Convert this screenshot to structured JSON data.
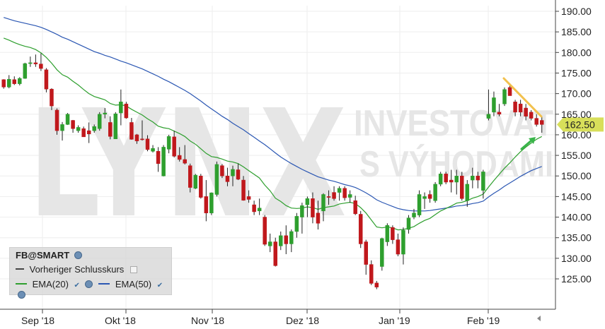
{
  "chart_data": {
    "type": "candlestick",
    "symbol": "FB@SMART",
    "watermark": {
      "logo": "LYNX",
      "line1": "INVESTOVAT",
      "line2": "S VÝHODAMI"
    },
    "ylim": [
      119,
      193
    ],
    "y_ticks": [
      "190.00",
      "185.00",
      "180.00",
      "175.00",
      "170.00",
      "165.00",
      "160.00",
      "155.00",
      "150.00",
      "145.00",
      "140.00",
      "135.00",
      "130.00",
      "125.00"
    ],
    "x_labels": [
      "Sep '18",
      "Okt '18",
      "Nov '18",
      "Dez '18",
      "Jan '19",
      "Feb '19"
    ],
    "last_price": "162.50",
    "legend": {
      "title": "FB@SMART",
      "prev_close": "Vorheriger Schlusskurs",
      "ema20": "EMA(20)",
      "ema50": "EMA(50)"
    },
    "colors": {
      "up": "#2e9f2e",
      "down": "#c0181c",
      "ema20": "#2e9f2e",
      "ema50": "#2b57b3",
      "price_tag": "#d8df5a",
      "trend": "#f2c14e",
      "arrow": "#39b54a"
    },
    "candles": [
      [
        173.4,
        173.5,
        171.2,
        171.6
      ],
      [
        171.6,
        174.5,
        171.3,
        173.5
      ],
      [
        173.4,
        174.2,
        172.1,
        172.4
      ],
      [
        172.4,
        174.0,
        172.0,
        173.7
      ],
      [
        173.7,
        177.5,
        173.6,
        177.3
      ],
      [
        177.3,
        179.0,
        176.5,
        177.5
      ],
      [
        177.5,
        179.5,
        176.5,
        177.2
      ],
      [
        177.2,
        179.8,
        175.5,
        176.1
      ],
      [
        175.8,
        176.2,
        170.3,
        171.1
      ],
      [
        171.1,
        171.3,
        166.0,
        167.0
      ],
      [
        166.0,
        166.4,
        160.0,
        161.0
      ],
      [
        161.0,
        163.1,
        158.6,
        162.5
      ],
      [
        162.5,
        165.3,
        162.4,
        165.0
      ],
      [
        163.5,
        163.6,
        160.5,
        161.5
      ],
      [
        161.0,
        162.3,
        160.5,
        161.8
      ],
      [
        161.5,
        162.0,
        159.5,
        159.5
      ],
      [
        161.0,
        163.0,
        158.0,
        160.2
      ],
      [
        161.0,
        162.5,
        160.5,
        162.0
      ],
      [
        161.5,
        165.5,
        161.0,
        165.0
      ],
      [
        165.0,
        166.5,
        164.0,
        165.3
      ],
      [
        163.0,
        164.5,
        158.9,
        159.6
      ],
      [
        159.0,
        165.5,
        159.0,
        165.1
      ],
      [
        165.3,
        171.0,
        162.3,
        168.0
      ],
      [
        167.5,
        168.0,
        163.9,
        164.1
      ],
      [
        163.0,
        164.1,
        158.8,
        158.9
      ],
      [
        160.0,
        160.2,
        157.8,
        158.5
      ],
      [
        159.0,
        163.5,
        158.6,
        158.8
      ],
      [
        159.0,
        159.9,
        156.0,
        156.4
      ],
      [
        156.0,
        157.5,
        155.7,
        156.7
      ],
      [
        156.0,
        157.0,
        151.0,
        153.0
      ],
      [
        150.0,
        157.5,
        149.9,
        157.0
      ],
      [
        156.5,
        160.0,
        155.5,
        159.6
      ],
      [
        159.5,
        161.0,
        154.5,
        154.8
      ],
      [
        155.0,
        157.0,
        153.5,
        154.0
      ],
      [
        154.0,
        157.5,
        152.8,
        153.1
      ],
      [
        152.5,
        153.0,
        146.0,
        147.2
      ],
      [
        147.0,
        150.5,
        146.8,
        150.2
      ],
      [
        150.0,
        150.5,
        144.5,
        144.8
      ],
      [
        145.0,
        149.0,
        139.0,
        141.0
      ],
      [
        141.0,
        146.0,
        140.5,
        145.9
      ],
      [
        145.5,
        153.5,
        145.0,
        152.8
      ],
      [
        152.5,
        152.9,
        149.5,
        150.0
      ],
      [
        150.0,
        152.0,
        147.5,
        148.6
      ],
      [
        150.0,
        152.5,
        147.5,
        151.6
      ],
      [
        151.5,
        153.0,
        149.0,
        149.2
      ],
      [
        149.0,
        150.0,
        144.0,
        144.1
      ],
      [
        145.0,
        146.5,
        143.5,
        144.3
      ],
      [
        143.0,
        144.0,
        140.5,
        141.3
      ],
      [
        141.5,
        144.5,
        140.5,
        142.2
      ],
      [
        140.0,
        140.5,
        133.0,
        133.4
      ],
      [
        133.0,
        136.0,
        131.5,
        134.0
      ],
      [
        134.0,
        135.0,
        128.0,
        128.2
      ],
      [
        133.0,
        136.5,
        132.0,
        135.5
      ],
      [
        135.5,
        138.0,
        131.0,
        133.5
      ],
      [
        133.5,
        137.0,
        131.5,
        136.5
      ],
      [
        136.5,
        141.0,
        135.0,
        140.2
      ],
      [
        140.0,
        143.5,
        136.0,
        142.8
      ],
      [
        143.0,
        145.0,
        140.0,
        144.5
      ],
      [
        144.5,
        146.0,
        138.5,
        140.0
      ],
      [
        141.0,
        144.0,
        137.0,
        138.5
      ],
      [
        141.5,
        145.8,
        139.0,
        145.5
      ],
      [
        145.0,
        146.5,
        143.0,
        144.8
      ],
      [
        146.0,
        147.5,
        144.0,
        144.5
      ],
      [
        146.0,
        147.5,
        144.0,
        147.0
      ],
      [
        147.0,
        147.5,
        144.0,
        144.7
      ],
      [
        144.8,
        146.5,
        143.5,
        145.5
      ],
      [
        144.0,
        145.2,
        140.5,
        140.8
      ],
      [
        140.7,
        141.5,
        132.5,
        133.5
      ],
      [
        134.0,
        134.5,
        126.0,
        128.5
      ],
      [
        128.5,
        129.5,
        123.5,
        123.9
      ],
      [
        124.0,
        124.5,
        122.5,
        123.0
      ],
      [
        128.0,
        135.0,
        127.0,
        134.8
      ],
      [
        134.0,
        138.5,
        133.0,
        138.0
      ],
      [
        137.5,
        138.0,
        133.5,
        134.5
      ],
      [
        134.5,
        136.0,
        130.5,
        131.0
      ],
      [
        131.0,
        137.5,
        128.5,
        136.8
      ],
      [
        137.0,
        140.5,
        136.0,
        139.8
      ],
      [
        140.0,
        142.0,
        139.5,
        141.0
      ],
      [
        140.5,
        146.5,
        140.0,
        145.5
      ],
      [
        144.5,
        146.0,
        142.0,
        145.0
      ],
      [
        145.5,
        146.5,
        143.5,
        144.5
      ],
      [
        144.0,
        148.5,
        143.5,
        148.0
      ],
      [
        148.0,
        151.0,
        147.5,
        150.5
      ],
      [
        150.5,
        151.0,
        148.0,
        148.5
      ],
      [
        149.0,
        151.5,
        146.0,
        148.5
      ],
      [
        148.5,
        151.5,
        145.5,
        150.0
      ],
      [
        150.0,
        151.0,
        144.0,
        144.5
      ],
      [
        144.0,
        149.0,
        142.5,
        148.0
      ],
      [
        149.0,
        152.0,
        147.0,
        150.0
      ],
      [
        150.0,
        151.0,
        147.0,
        149.0
      ],
      [
        146.5,
        151.5,
        144.5,
        151.0
      ],
      [
        164.0,
        171.0,
        163.5,
        165.0
      ],
      [
        165.5,
        170.5,
        164.5,
        169.0
      ],
      [
        165.5,
        167.5,
        164.5,
        165.0
      ],
      [
        167.5,
        171.5,
        167.0,
        171.0
      ],
      [
        171.5,
        172.5,
        169.5,
        169.5
      ],
      [
        168.0,
        168.5,
        164.5,
        165.5
      ],
      [
        167.5,
        168.5,
        164.5,
        165.5
      ],
      [
        166.5,
        167.5,
        163.5,
        164.5
      ],
      [
        165.5,
        166.0,
        163.5,
        164.0
      ],
      [
        164.0,
        165.0,
        162.0,
        162.5
      ],
      [
        163.5,
        164.5,
        160.5,
        162.5
      ]
    ],
    "ema20": [
      183.5,
      183.0,
      182.4,
      181.9,
      181.5,
      181.2,
      180.7,
      179.9,
      178.8,
      177.4,
      175.8,
      174.6,
      174.0,
      173.0,
      172.1,
      171.0,
      170.0,
      169.3,
      168.9,
      168.5,
      167.6,
      167.2,
      167.3,
      167.0,
      166.2,
      165.5,
      164.8,
      163.9,
      163.1,
      162.1,
      161.7,
      161.5,
      160.9,
      160.3,
      159.6,
      158.5,
      157.7,
      156.6,
      155.5,
      154.7,
      154.5,
      154.1,
      153.6,
      153.4,
      153.0,
      152.2,
      151.3,
      150.4,
      149.5,
      147.8,
      146.4,
      144.6,
      143.8,
      142.8,
      142.2,
      142.1,
      142.2,
      142.5,
      142.3,
      141.9,
      142.3,
      142.5,
      142.7,
      143.2,
      143.4,
      143.6,
      143.3,
      142.3,
      141.0,
      139.3,
      137.6,
      137.4,
      137.6,
      137.4,
      136.9,
      137.0,
      137.3,
      137.7,
      138.5,
      139.2,
      139.7,
      140.6,
      141.5,
      142.1,
      142.7,
      143.4,
      143.6,
      144.0,
      144.6,
      145.0,
      145.6,
      147.3,
      148.9,
      150.4,
      151.9,
      153.2,
      154.6,
      155.9,
      157.0,
      158.0,
      158.9,
      159.6
    ],
    "ema50": [
      188.5,
      188.1,
      187.7,
      187.4,
      187.1,
      186.8,
      186.5,
      186.1,
      185.6,
      185.0,
      184.4,
      183.7,
      183.2,
      182.6,
      182.0,
      181.4,
      180.8,
      180.2,
      179.8,
      179.3,
      178.9,
      178.4,
      177.9,
      177.5,
      177.0,
      176.5,
      176.0,
      175.4,
      174.8,
      174.2,
      173.5,
      172.9,
      172.2,
      171.5,
      170.8,
      170.0,
      169.1,
      168.2,
      167.2,
      166.3,
      165.4,
      164.5,
      163.7,
      162.8,
      162.0,
      161.2,
      160.3,
      159.4,
      158.5,
      157.6,
      156.6,
      155.6,
      154.6,
      153.8,
      153.0,
      152.3,
      151.6,
      151.0,
      150.4,
      149.8,
      149.4,
      149.0,
      148.7,
      148.3,
      147.9,
      147.6,
      147.2,
      146.6,
      145.9,
      145.1,
      144.2,
      143.6,
      143.1,
      142.6,
      142.1,
      141.8,
      141.6,
      141.5,
      141.5,
      141.5,
      141.6,
      141.8,
      142.0,
      142.2,
      142.4,
      142.7,
      142.8,
      143.0,
      143.3,
      143.5,
      143.9,
      144.9,
      145.8,
      146.6,
      147.5,
      148.3,
      149.1,
      149.9,
      150.6,
      151.3,
      151.8,
      152.3
    ]
  }
}
